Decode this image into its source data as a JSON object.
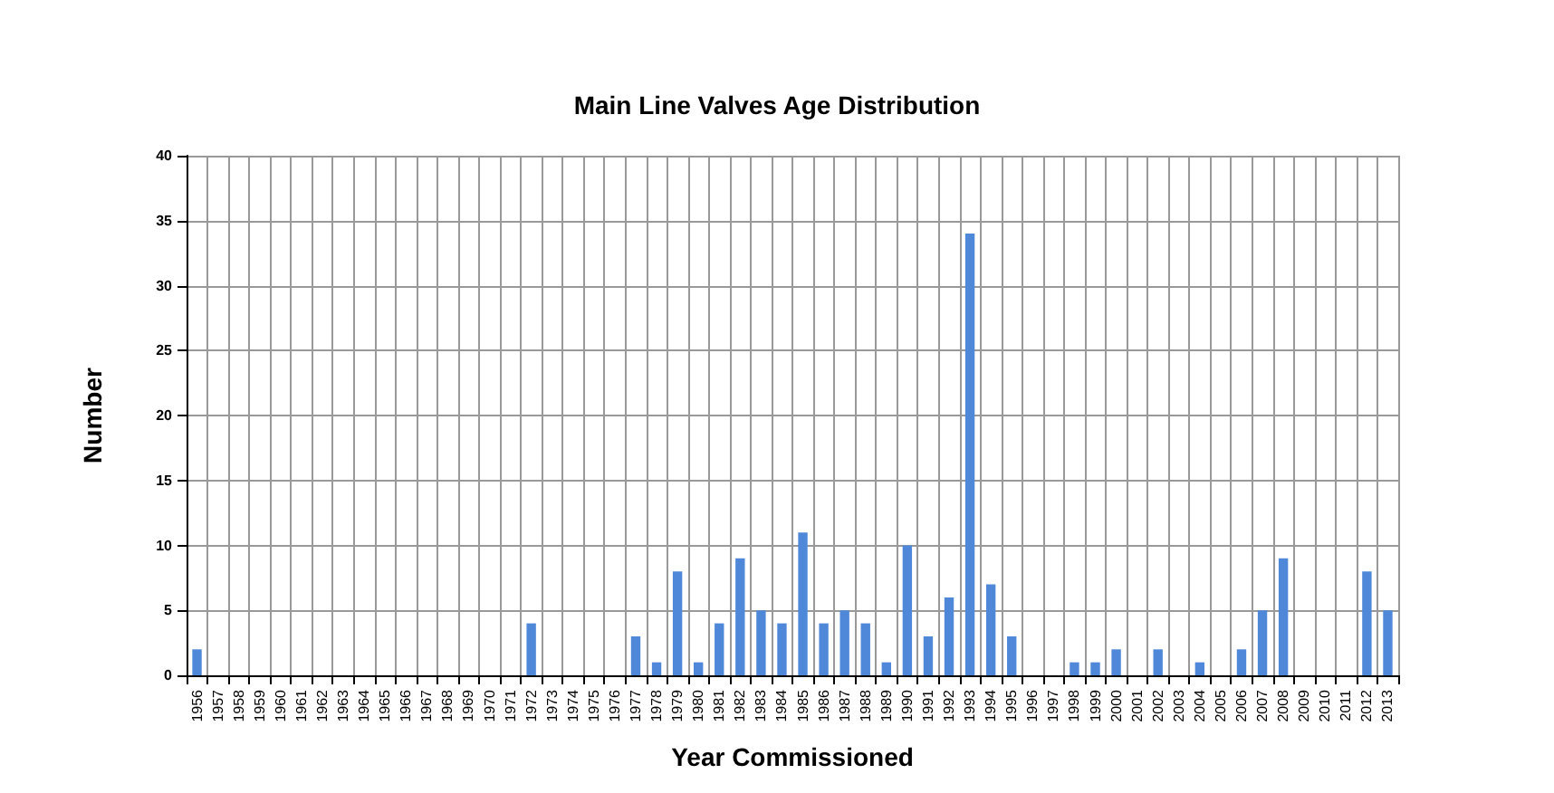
{
  "chart_data": {
    "type": "bar",
    "title": "Main Line Valves Age Distribution",
    "xlabel": "Year Commissioned",
    "ylabel": "Number",
    "categories": [
      "1956",
      "1957",
      "1958",
      "1959",
      "1960",
      "1961",
      "1962",
      "1963",
      "1964",
      "1965",
      "1966",
      "1967",
      "1968",
      "1969",
      "1970",
      "1971",
      "1972",
      "1973",
      "1974",
      "1975",
      "1976",
      "1977",
      "1978",
      "1979",
      "1980",
      "1981",
      "1982",
      "1983",
      "1984",
      "1985",
      "1986",
      "1987",
      "1988",
      "1989",
      "1990",
      "1991",
      "1992",
      "1993",
      "1994",
      "1995",
      "1996",
      "1997",
      "1998",
      "1999",
      "2000",
      "2001",
      "2002",
      "2003",
      "2004",
      "2005",
      "2006",
      "2007",
      "2008",
      "2009",
      "2010",
      "2011",
      "2012",
      "2013"
    ],
    "values": [
      2,
      0,
      0,
      0,
      0,
      0,
      0,
      0,
      0,
      0,
      0,
      0,
      0,
      0,
      0,
      0,
      4,
      0,
      0,
      0,
      0,
      3,
      1,
      8,
      1,
      4,
      9,
      5,
      4,
      11,
      4,
      5,
      4,
      1,
      10,
      3,
      6,
      34,
      7,
      3,
      0,
      0,
      1,
      1,
      2,
      0,
      2,
      0,
      1,
      0,
      2,
      5,
      9,
      0,
      0,
      0,
      8,
      5
    ],
    "color": "#4f88d9",
    "ylim": [
      0,
      40
    ],
    "yticks": [
      0,
      5,
      10,
      15,
      20,
      25,
      30,
      35,
      40
    ],
    "grid": true
  }
}
